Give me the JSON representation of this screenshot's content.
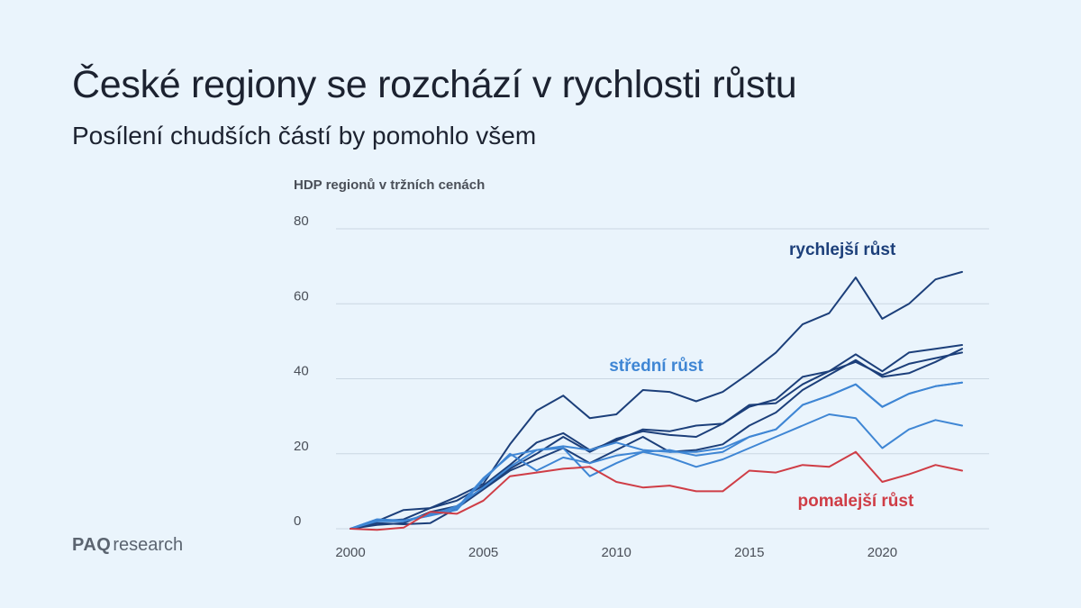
{
  "header": {
    "title": "České regiony se rozchází v rychlosti růstu",
    "subtitle": "Posílení chudších částí by pomohlo všem"
  },
  "branding": {
    "logo_bold": "PAQ",
    "logo_light": "research"
  },
  "colors": {
    "fast": "#1c3f7a",
    "medium": "#3f86d4",
    "slow": "#cf3d46",
    "grid": "#c9d6e2",
    "background": "#eaf4fc"
  },
  "chart_data": {
    "type": "line",
    "ylabel": "HDP regionů v tržních cenách",
    "xlabel": "",
    "xlim": [
      2000,
      2023
    ],
    "ylim": [
      0,
      80
    ],
    "yticks": [
      0,
      20,
      40,
      60,
      80
    ],
    "xticks": [
      2000,
      2005,
      2010,
      2015,
      2020
    ],
    "grid": "horizontal",
    "annotations": [
      {
        "text": "rychlejší růst",
        "group": "fast",
        "x": 2018.5,
        "y": 73
      },
      {
        "text": "střední růst",
        "group": "medium",
        "x": 2011.5,
        "y": 42
      },
      {
        "text": "pomalejší růst",
        "group": "slow",
        "x": 2019.0,
        "y": 6
      }
    ],
    "x": [
      2000,
      2001,
      2002,
      2003,
      2004,
      2005,
      2006,
      2007,
      2008,
      2009,
      2010,
      2011,
      2012,
      2013,
      2014,
      2015,
      2016,
      2017,
      2018,
      2019,
      2020,
      2021,
      2022,
      2023
    ],
    "series": [
      {
        "group": "fast",
        "values": [
          0,
          2.0,
          5.0,
          5.5,
          8.5,
          12.0,
          22.5,
          31.5,
          35.5,
          29.5,
          30.5,
          37.0,
          36.5,
          34.0,
          36.5,
          41.5,
          47.0,
          54.5,
          57.5,
          67.0,
          56.0,
          60.0,
          66.5,
          68.5
        ]
      },
      {
        "group": "fast",
        "values": [
          0,
          2.0,
          2.5,
          5.5,
          7.5,
          11.5,
          17.0,
          23.0,
          25.5,
          21.0,
          23.5,
          26.5,
          26.0,
          27.5,
          28.0,
          32.5,
          34.5,
          40.5,
          42.0,
          46.5,
          42.0,
          47.0,
          48.0,
          49.0
        ]
      },
      {
        "group": "fast",
        "values": [
          0,
          1.0,
          1.5,
          4.5,
          6.0,
          11.0,
          16.0,
          20.0,
          24.5,
          20.5,
          24.0,
          26.0,
          25.0,
          24.5,
          28.0,
          33.0,
          33.5,
          38.5,
          42.0,
          44.5,
          41.0,
          44.0,
          45.5,
          47.0
        ]
      },
      {
        "group": "fast",
        "values": [
          0,
          1.5,
          1.2,
          1.5,
          5.5,
          10.5,
          15.5,
          18.5,
          21.5,
          17.5,
          21.0,
          24.5,
          20.5,
          21.0,
          22.5,
          27.5,
          31.0,
          37.0,
          41.0,
          45.0,
          40.5,
          41.5,
          44.5,
          48.0
        ]
      },
      {
        "group": "medium",
        "values": [
          0,
          2.5,
          2.2,
          3.5,
          6.0,
          11.0,
          16.5,
          21.0,
          22.0,
          21.0,
          23.0,
          21.0,
          20.5,
          20.5,
          21.5,
          24.5,
          26.5,
          33.0,
          35.5,
          38.5,
          32.5,
          36.0,
          38.0,
          39.0
        ]
      },
      {
        "group": "medium",
        "values": [
          0,
          2.5,
          2.0,
          3.5,
          5.0,
          13.0,
          20.0,
          15.5,
          19.0,
          17.5,
          19.5,
          20.5,
          19.0,
          16.5,
          18.5,
          21.5,
          24.5,
          27.5,
          30.5,
          29.5,
          21.5,
          26.5,
          29.0,
          27.5
        ]
      },
      {
        "group": "medium",
        "values": [
          0,
          2.0,
          2.0,
          4.0,
          5.5,
          13.5,
          19.5,
          21.0,
          21.5,
          14.0,
          17.5,
          20.5,
          21.0,
          19.5,
          20.5,
          24.5,
          26.5,
          33.0,
          35.5,
          38.5,
          32.5,
          36.0,
          38.0,
          39.0
        ]
      },
      {
        "group": "slow",
        "values": [
          0,
          -0.3,
          0.3,
          4.5,
          4.0,
          7.5,
          14.0,
          15.0,
          16.0,
          16.5,
          12.5,
          11.0,
          11.5,
          10.0,
          10.0,
          15.5,
          15.0,
          17.0,
          16.5,
          20.5,
          12.5,
          14.5,
          17.0,
          15.5
        ]
      }
    ]
  }
}
